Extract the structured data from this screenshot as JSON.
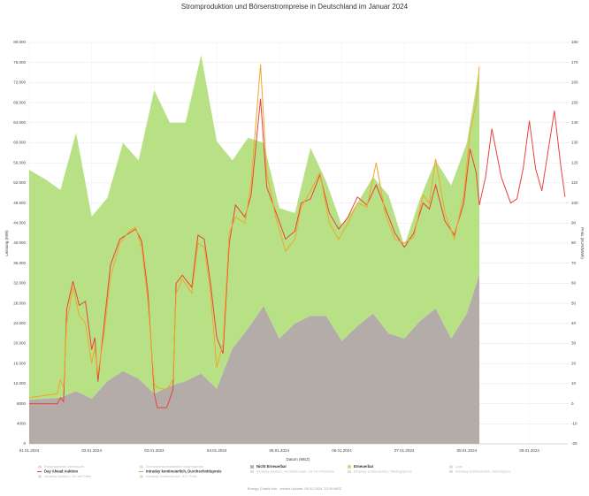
{
  "chart_data": {
    "type": "stacked-area-line",
    "title": "Stromproduktion und Börsenstrompreise in Deutschland im Januar 2024",
    "y_label": "Leistung (MW)",
    "y2_label": "Preis (EUR/MWh)",
    "x_label": "Datum (MEZ)",
    "footer": "Energy-Charts.info - letztes Update: 09.01.2024, 12:49 MEZ",
    "xlim": [
      0,
      8.6
    ],
    "xticks": [
      {
        "value": 0,
        "label": "01.01.2024"
      },
      {
        "value": 1,
        "label": "02.01.2024"
      },
      {
        "value": 2,
        "label": "03.01.2024"
      },
      {
        "value": 3,
        "label": "04.01.2024"
      },
      {
        "value": 4,
        "label": "05.01.2024"
      },
      {
        "value": 5,
        "label": "06.01.2024"
      },
      {
        "value": 6,
        "label": "07.01.2024"
      },
      {
        "value": 7,
        "label": "08.01.2024"
      },
      {
        "value": 8,
        "label": "09.01.2024"
      }
    ],
    "ylim": [
      0,
      80000
    ],
    "yticks": [
      0,
      4000,
      8000,
      {
        "value": 12000,
        "label": "12.000"
      },
      {
        "value": 16000,
        "label": "16.000"
      },
      {
        "value": 20000,
        "label": "20.000"
      },
      {
        "value": 24000,
        "label": "24.000"
      },
      {
        "value": 28000,
        "label": "28.000"
      },
      {
        "value": 32000,
        "label": "32.000"
      },
      {
        "value": 36000,
        "label": "36.000"
      },
      {
        "value": 40000,
        "label": "40.000"
      },
      {
        "value": 44000,
        "label": "44.000"
      },
      {
        "value": 48000,
        "label": "48.000"
      },
      {
        "value": 52000,
        "label": "52.000"
      },
      {
        "value": 56000,
        "label": "56.000"
      },
      {
        "value": 60000,
        "label": "60.000"
      },
      {
        "value": 64000,
        "label": "64.000"
      },
      {
        "value": 68000,
        "label": "68.000"
      },
      {
        "value": 72000,
        "label": "72.000"
      },
      {
        "value": 76000,
        "label": "76.000"
      },
      {
        "value": 80000,
        "label": "80.000"
      }
    ],
    "y2lim": [
      -20,
      180
    ],
    "y2ticks": [
      -20,
      -10,
      0,
      10,
      20,
      30,
      40,
      50,
      60,
      70,
      80,
      90,
      100,
      110,
      120,
      130,
      140,
      150,
      160,
      170,
      180
    ],
    "grid": true,
    "legend_inactive": [
      "Pumpspeicher Verbrauch",
      "Grenzüberschreitender Stromhandel",
      "Last",
      "Intraday Auktion, 15 min Preis",
      "Intraday kontinuierlich, ID1-Preis",
      "Intraday Auktion, Viertelstunden, 15 min-Produkte",
      "Intraday kontinuierlich, Niedrigstpreis",
      "Intraday kontinuierlich, Höchstpreis"
    ],
    "series": [
      {
        "name": "Nicht Erneuerbar",
        "color": "#b4aca9",
        "kind": "area",
        "x": [
          0,
          0.25,
          0.5,
          0.75,
          1,
          1.25,
          1.5,
          1.75,
          2,
          2.25,
          2.5,
          2.75,
          3,
          3.25,
          3.5,
          3.75,
          4,
          4.25,
          4.5,
          4.75,
          5,
          5.25,
          5.5,
          5.75,
          6,
          6.25,
          6.5,
          6.75,
          7,
          7.2
        ],
        "values": [
          8800,
          9000,
          9200,
          10500,
          9000,
          12500,
          14500,
          13000,
          10000,
          11500,
          12500,
          14000,
          11000,
          19000,
          23000,
          27500,
          21000,
          24000,
          25500,
          25500,
          20500,
          23500,
          26000,
          22000,
          21000,
          24500,
          27000,
          21000,
          26000,
          33800
        ]
      },
      {
        "name": "Erneuerbar",
        "color": "#b8e186",
        "kind": "area",
        "x": [
          0,
          0.25,
          0.5,
          0.75,
          1,
          1.25,
          1.5,
          1.75,
          2,
          2.25,
          2.5,
          2.75,
          3,
          3.25,
          3.5,
          3.75,
          4,
          4.25,
          4.5,
          4.75,
          5,
          5.25,
          5.5,
          5.75,
          6,
          6.25,
          6.5,
          6.75,
          7,
          7.2
        ],
        "values": [
          45800,
          43800,
          41400,
          51500,
          36300,
          36500,
          45500,
          43500,
          60500,
          52500,
          51500,
          63500,
          49300,
          37500,
          38000,
          32500,
          26000,
          22000,
          33500,
          26800,
          23000,
          24500,
          27200,
          27500,
          18500,
          24300,
          29500,
          30500,
          34000,
          41200
        ]
      },
      {
        "name": "Day Ahead Auktion",
        "color": "#e8423a",
        "kind": "line",
        "axis": "y2",
        "x": [
          0,
          0.45,
          0.5,
          0.55,
          0.6,
          0.7,
          0.8,
          0.9,
          1,
          1.05,
          1.1,
          1.2,
          1.3,
          1.45,
          1.6,
          1.7,
          1.8,
          1.9,
          2,
          2.05,
          2.2,
          2.3,
          2.35,
          2.45,
          2.6,
          2.7,
          2.8,
          2.9,
          3,
          3.1,
          3.2,
          3.3,
          3.45,
          3.55,
          3.7,
          3.8,
          3.95,
          4.1,
          4.25,
          4.35,
          4.5,
          4.65,
          4.8,
          4.95,
          5.1,
          5.25,
          5.4,
          5.55,
          5.7,
          5.85,
          6,
          6.15,
          6.3,
          6.4,
          6.5,
          6.65,
          6.8,
          6.95,
          7.05,
          7.15,
          7.2,
          7.3,
          7.4,
          7.55,
          7.7,
          7.8,
          7.9,
          8,
          8.1,
          8.2,
          8.3,
          8.4,
          8.5,
          8.57
        ],
        "values": [
          0,
          0,
          3,
          1,
          47,
          61,
          49,
          51,
          27,
          33,
          11,
          40,
          69,
          82,
          85,
          87,
          81,
          55,
          5,
          -2,
          -2,
          7,
          60,
          64,
          58,
          84,
          82,
          60,
          33,
          25,
          80,
          99,
          93,
          104,
          152,
          108,
          95,
          82,
          86,
          100,
          102,
          114,
          95,
          87,
          93,
          103,
          99,
          109,
          97,
          85,
          78,
          85,
          100,
          97,
          109,
          91,
          84,
          100,
          127,
          115,
          99,
          113,
          137,
          113,
          100,
          102,
          117,
          141,
          117,
          106,
          126,
          146,
          119,
          103
        ]
      },
      {
        "name": "Intraday kontinuierlich, Durchschnittspreis",
        "color": "#f2a52c",
        "kind": "line",
        "axis": "y2",
        "x": [
          0,
          0.45,
          0.5,
          0.55,
          0.6,
          0.7,
          0.8,
          0.9,
          1,
          1.05,
          1.1,
          1.2,
          1.3,
          1.45,
          1.6,
          1.7,
          1.8,
          1.9,
          2,
          2.05,
          2.2,
          2.3,
          2.35,
          2.45,
          2.6,
          2.7,
          2.8,
          2.9,
          3,
          3.1,
          3.2,
          3.3,
          3.45,
          3.55,
          3.7,
          3.8,
          3.95,
          4.1,
          4.25,
          4.35,
          4.5,
          4.65,
          4.8,
          4.95,
          5.1,
          5.25,
          5.4,
          5.55,
          5.7,
          5.85,
          6,
          6.15,
          6.3,
          6.4,
          6.5,
          6.65,
          6.8,
          6.95,
          7.05,
          7.15,
          7.2
        ],
        "values": [
          3,
          5,
          12,
          8,
          40,
          58,
          44,
          40,
          20,
          28,
          15,
          35,
          63,
          80,
          86,
          88,
          78,
          50,
          10,
          8,
          7,
          12,
          55,
          62,
          55,
          80,
          78,
          55,
          18,
          30,
          85,
          93,
          90,
          110,
          169,
          115,
          92,
          76,
          82,
          98,
          106,
          115,
          90,
          82,
          90,
          100,
          98,
          120,
          94,
          82,
          80,
          83,
          104,
          100,
          122,
          95,
          82,
          104,
          135,
          150,
          168
        ]
      }
    ]
  }
}
